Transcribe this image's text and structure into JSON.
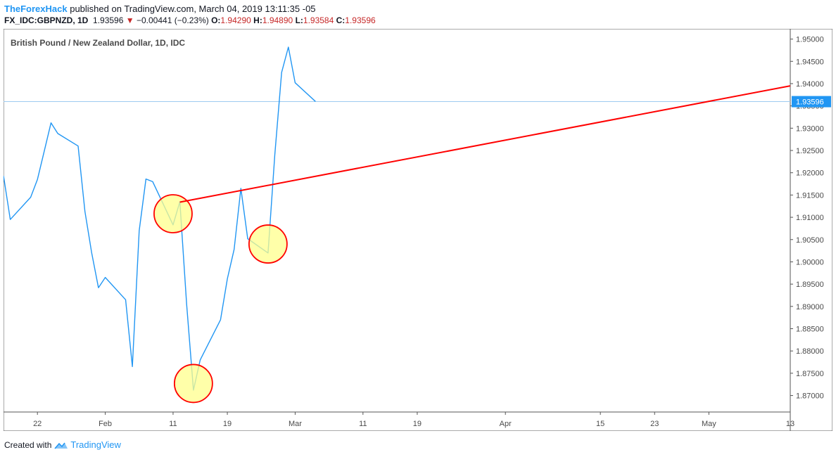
{
  "header": {
    "author": "TheForexHack",
    "published_text": "published on TradingView.com, March 04, 2019 13:11:35 -05",
    "symbol": "FX_IDC:GBPNZD, 1D",
    "last_price": "1.93596",
    "change_arrow": "▼",
    "change": "−0.00441 (−0.23%)",
    "open_label": "O:",
    "open": "1.94290",
    "high_label": "H:",
    "high": "1.94890",
    "low_label": "L:",
    "low": "1.93584",
    "close_label": "C:",
    "close": "1.93596"
  },
  "footer": {
    "created_with": "Created with",
    "brand": "TradingView"
  },
  "colors": {
    "series": "#2196f3",
    "trendline": "#ff0000",
    "highlight_fill": "#ffff8c",
    "highlight_stroke": "#ff0000",
    "price_label_bg": "#2196f3",
    "price_line": "#9ecbf0",
    "axis": "#555555"
  },
  "chart_data": {
    "type": "line",
    "title": "British Pound / New Zealand Dollar, 1D, IDC",
    "y_axis_side": "right",
    "ylim": [
      1.8663,
      1.9523
    ],
    "y_ticks": [
      "1.95000",
      "1.94500",
      "1.94000",
      "1.93500",
      "1.93000",
      "1.92500",
      "1.92000",
      "1.91500",
      "1.91000",
      "1.90500",
      "1.90000",
      "1.89500",
      "1.89000",
      "1.88500",
      "1.88000",
      "1.87500",
      "1.87000"
    ],
    "x_ticks": [
      {
        "label": "22",
        "x": "2019-01-22"
      },
      {
        "label": "Feb",
        "x": "2019-02-01"
      },
      {
        "label": "11",
        "x": "2019-02-11"
      },
      {
        "label": "19",
        "x": "2019-02-19"
      },
      {
        "label": "Mar",
        "x": "2019-03-01"
      },
      {
        "label": "11",
        "x": "2019-03-11"
      },
      {
        "label": "19",
        "x": "2019-03-19"
      },
      {
        "label": "Apr",
        "x": "2019-04-01"
      },
      {
        "label": "15",
        "x": "2019-04-15"
      },
      {
        "label": "23",
        "x": "2019-04-23"
      },
      {
        "label": "May",
        "x": "2019-05-01"
      },
      {
        "label": "13",
        "x": "2019-05-13"
      }
    ],
    "xlim": [
      "2019-01-17",
      "2019-05-13"
    ],
    "series": [
      {
        "points": [
          [
            "2019-01-17",
            1.9193
          ],
          [
            "2019-01-18",
            1.9095
          ],
          [
            "2019-01-21",
            1.9145
          ],
          [
            "2019-01-22",
            1.9185
          ],
          [
            "2019-01-23",
            1.9248
          ],
          [
            "2019-01-24",
            1.9312
          ],
          [
            "2019-01-25",
            1.9288
          ],
          [
            "2019-01-28",
            1.926
          ],
          [
            "2019-01-29",
            1.9113
          ],
          [
            "2019-01-30",
            1.902
          ],
          [
            "2019-01-31",
            1.8942
          ],
          [
            "2019-02-01",
            1.8965
          ],
          [
            "2019-02-04",
            1.8915
          ],
          [
            "2019-02-05",
            1.8765
          ],
          [
            "2019-02-06",
            1.907
          ],
          [
            "2019-02-07",
            1.9186
          ],
          [
            "2019-02-08",
            1.918
          ],
          [
            "2019-02-11",
            1.9083
          ],
          [
            "2019-02-12",
            1.9135
          ],
          [
            "2019-02-13",
            1.8905
          ],
          [
            "2019-02-14",
            1.8712
          ],
          [
            "2019-02-15",
            1.878
          ],
          [
            "2019-02-18",
            1.887
          ],
          [
            "2019-02-19",
            1.8962
          ],
          [
            "2019-02-20",
            1.9028
          ],
          [
            "2019-02-21",
            1.9165
          ],
          [
            "2019-02-22",
            1.9052
          ],
          [
            "2019-02-25",
            1.902
          ],
          [
            "2019-02-26",
            1.924
          ],
          [
            "2019-02-27",
            1.9425
          ],
          [
            "2019-02-28",
            1.9482
          ],
          [
            "2019-03-01",
            1.9402
          ],
          [
            "2019-03-04",
            1.936
          ]
        ]
      }
    ],
    "trendline": {
      "from": [
        "2019-02-12",
        1.9134
      ],
      "to": [
        "2019-05-13",
        1.9395
      ]
    },
    "highlight_circles": [
      {
        "x": "2019-02-11",
        "y": 1.9108
      },
      {
        "x": "2019-02-14",
        "y": 1.8727
      },
      {
        "x": "2019-02-25",
        "y": 1.904
      }
    ],
    "current_price": {
      "label": "1.93596",
      "value": 1.93596
    }
  }
}
